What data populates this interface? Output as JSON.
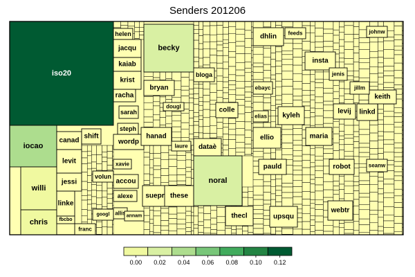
{
  "chart_data": {
    "type": "treemap",
    "title": "Senders 201206",
    "colorbar": {
      "ticks": [
        "0.00",
        "0.02",
        "0.04",
        "0.06",
        "0.08",
        "0.10",
        "0.12"
      ],
      "colors": [
        "#ffffb2",
        "#f0f9a0",
        "#d9f0a3",
        "#addd8e",
        "#78c679",
        "#41ab5d",
        "#238443",
        "#005a32"
      ]
    },
    "leaves": [
      {
        "label": "iso20",
        "value": 0.12
      },
      {
        "label": "iocao",
        "value": 0.04
      },
      {
        "label": "willi",
        "value": 0.02
      },
      {
        "label": "chris",
        "value": 0.02
      },
      {
        "label": "canad",
        "value": 0.01
      },
      {
        "label": "levit",
        "value": 0.01
      },
      {
        "label": "jessi",
        "value": 0.01
      },
      {
        "label": "linke",
        "value": 0.01
      },
      {
        "label": "shift",
        "value": 0.01
      },
      {
        "label": "volun",
        "value": 0.01
      },
      {
        "label": "fbcbo",
        "value": 0.005
      },
      {
        "label": "franc",
        "value": 0.005
      },
      {
        "label": "googl",
        "value": 0.005
      },
      {
        "label": "helen",
        "value": 0.01
      },
      {
        "label": "jacqu",
        "value": 0.01
      },
      {
        "label": "kaiab",
        "value": 0.01
      },
      {
        "label": "krist",
        "value": 0.01
      },
      {
        "label": "racha",
        "value": 0.01
      },
      {
        "label": "sarah",
        "value": 0.01
      },
      {
        "label": "steph",
        "value": 0.01
      },
      {
        "label": "wordp",
        "value": 0.01
      },
      {
        "label": "xavie",
        "value": 0.005
      },
      {
        "label": "accou",
        "value": 0.01
      },
      {
        "label": "alexe",
        "value": 0.01
      },
      {
        "label": "allis",
        "value": 0.005
      },
      {
        "label": "annam",
        "value": 0.005
      },
      {
        "label": "becky",
        "value": 0.03
      },
      {
        "label": "bryan",
        "value": 0.01
      },
      {
        "label": "dougl",
        "value": 0.005
      },
      {
        "label": "hanad",
        "value": 0.01
      },
      {
        "label": "laure",
        "value": 0.005
      },
      {
        "label": "suepr",
        "value": 0.01
      },
      {
        "label": "these",
        "value": 0.01
      },
      {
        "label": "dataè",
        "value": 0.01
      },
      {
        "label": "noral",
        "value": 0.03
      },
      {
        "label": "thecl",
        "value": 0.01
      },
      {
        "label": "bloga",
        "value": 0.01
      },
      {
        "label": "colle",
        "value": 0.01
      },
      {
        "label": "dhlin",
        "value": 0.01
      },
      {
        "label": "feeds",
        "value": 0.005
      },
      {
        "label": "ebayc",
        "value": 0.005
      },
      {
        "label": "elias",
        "value": 0.005
      },
      {
        "label": "kyleh",
        "value": 0.01
      },
      {
        "label": "ellio",
        "value": 0.01
      },
      {
        "label": "pauld",
        "value": 0.01
      },
      {
        "label": "upsqu",
        "value": 0.01
      },
      {
        "label": "insta",
        "value": 0.01
      },
      {
        "label": "jenis",
        "value": 0.005
      },
      {
        "label": "levij",
        "value": 0.01
      },
      {
        "label": "linkd",
        "value": 0.01
      },
      {
        "label": "keith",
        "value": 0.01
      },
      {
        "label": "maria",
        "value": 0.01
      },
      {
        "label": "robot",
        "value": 0.01
      },
      {
        "label": "webtr",
        "value": 0.01
      },
      {
        "label": "seanw",
        "value": 0.005
      },
      {
        "label": "johnw",
        "value": 0.005
      },
      {
        "label": "jillm",
        "value": 0.005
      }
    ]
  }
}
